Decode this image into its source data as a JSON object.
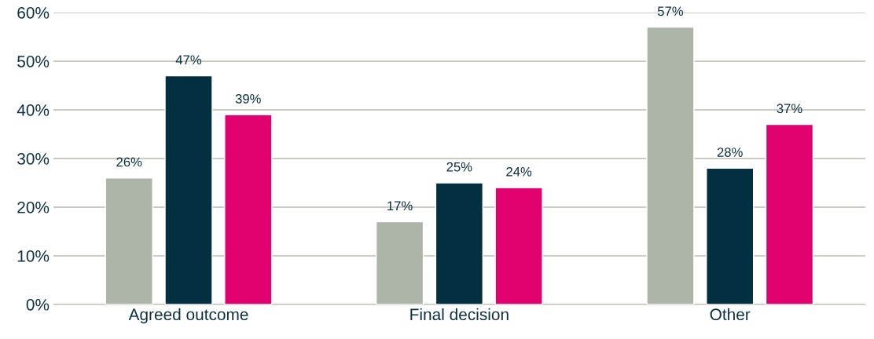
{
  "chart_data": {
    "type": "bar",
    "categories": [
      "Agreed outcome",
      "Final decision",
      "Other"
    ],
    "series": [
      {
        "color": "#adb5a8",
        "values": [
          26,
          17,
          57
        ],
        "value_labels": [
          "26%",
          "17%",
          "57%"
        ]
      },
      {
        "color": "#023040",
        "values": [
          47,
          25,
          28
        ],
        "value_labels": [
          "47%",
          "25%",
          "28%"
        ]
      },
      {
        "color": "#e0006e",
        "values": [
          39,
          24,
          37
        ],
        "value_labels": [
          "39%",
          "24%",
          "37%"
        ]
      }
    ],
    "ylim": [
      0,
      60
    ],
    "yticks": [
      {
        "value": 0,
        "label": "0%"
      },
      {
        "value": 10,
        "label": "10%"
      },
      {
        "value": 20,
        "label": "20%"
      },
      {
        "value": 30,
        "label": "30%"
      },
      {
        "value": 40,
        "label": "40%"
      },
      {
        "value": 50,
        "label": "50%"
      },
      {
        "value": 60,
        "label": "60%"
      }
    ],
    "grid": "y",
    "legend": false
  }
}
